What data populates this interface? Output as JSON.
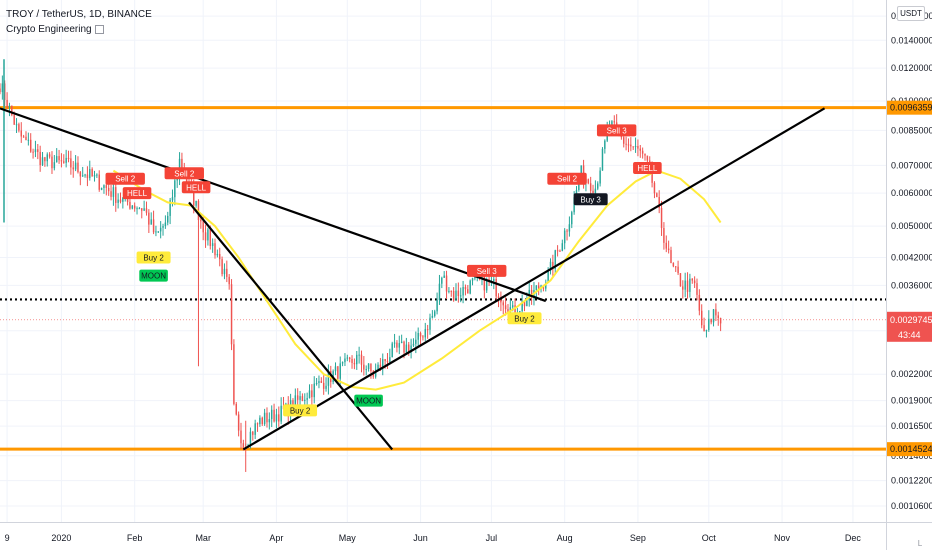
{
  "header": {
    "symbol_line": "TROY / TetherUS, 1D, BINANCE",
    "indicator": "Crypto Engineering"
  },
  "price_scale": {
    "currency": "USDT",
    "mode": "L",
    "ticks": [
      "0.0160000",
      "0.0140000",
      "0.0120000",
      "0.0100000",
      "0.0085000",
      "0.0070000",
      "0.0060000",
      "0.0050000",
      "0.0042000",
      "0.0036000",
      "0.0028000",
      "0.0022000",
      "0.0019000",
      "0.0016500",
      "0.0014000",
      "0.0012200",
      "0.0010600"
    ]
  },
  "time_scale": {
    "ticks": [
      "9",
      "2020",
      "Feb",
      "Mar",
      "Apr",
      "May",
      "Jun",
      "Jul",
      "Aug",
      "Sep",
      "Oct",
      "Nov",
      "Dec"
    ]
  },
  "colors": {
    "up": "#26a69a",
    "down": "#ef5350",
    "level": "#ff9800",
    "ma": "#ffeb3b",
    "trendline": "#000000",
    "sell_label": "#f44336",
    "buy_label": "#ffeb3b",
    "moon_label": "#00c853",
    "buy3_label": "#131722"
  },
  "chart_data": {
    "type": "candlestick",
    "symbol": "TROY / TetherUS",
    "interval": "1D",
    "exchange": "BINANCE",
    "y_scale": "log",
    "ylim": [
      0.00097,
      0.0175
    ],
    "x_range": [
      "2019-12-06",
      "2020-12-15"
    ],
    "last_price": "0.0029745",
    "countdown": "43:44",
    "horizontal_levels": [
      {
        "price": 0.0096359,
        "label": "0.0096359",
        "style": "solid",
        "color": "#ff9800"
      },
      {
        "price": 0.0014524,
        "label": "0.0014524",
        "style": "solid",
        "color": "#ff9800"
      },
      {
        "price": 0.00333,
        "label": "",
        "style": "dotted",
        "color": "#000000"
      }
    ],
    "trendlines": [
      {
        "from": [
          "2019-12-06",
          0.0096
        ],
        "to": [
          "2020-07-24",
          0.0033
        ]
      },
      {
        "from": [
          "2020-02-24",
          0.0057
        ],
        "to": [
          "2020-05-20",
          0.00145
        ]
      },
      {
        "from": [
          "2020-03-18",
          0.00145
        ],
        "to": [
          "2020-11-19",
          0.0096
        ]
      }
    ],
    "signals": [
      {
        "date": "2020-01-28",
        "price": 0.0065,
        "label": "Sell 2",
        "kind": "sell"
      },
      {
        "date": "2020-02-02",
        "price": 0.006,
        "label": "HELL",
        "kind": "sell"
      },
      {
        "date": "2020-02-09",
        "price": 0.0042,
        "label": "Buy 2",
        "kind": "buy"
      },
      {
        "date": "2020-02-09",
        "price": 0.0038,
        "label": "MOON",
        "kind": "moon"
      },
      {
        "date": "2020-02-22",
        "price": 0.0067,
        "label": "Sell 2",
        "kind": "sell"
      },
      {
        "date": "2020-02-27",
        "price": 0.0062,
        "label": "HELL",
        "kind": "sell"
      },
      {
        "date": "2020-04-11",
        "price": 0.0018,
        "label": "Buy 2",
        "kind": "buy"
      },
      {
        "date": "2020-05-10",
        "price": 0.0019,
        "label": "MOON",
        "kind": "moon"
      },
      {
        "date": "2020-06-29",
        "price": 0.0039,
        "label": "Sell 3",
        "kind": "sell"
      },
      {
        "date": "2020-07-15",
        "price": 0.003,
        "label": "Buy 2",
        "kind": "buy"
      },
      {
        "date": "2020-08-02",
        "price": 0.0065,
        "label": "Sell 2",
        "kind": "sell"
      },
      {
        "date": "2020-08-12",
        "price": 0.0058,
        "label": "Buy 3",
        "kind": "buy3"
      },
      {
        "date": "2020-08-23",
        "price": 0.0085,
        "label": "Sell 3",
        "kind": "sell"
      },
      {
        "date": "2020-09-05",
        "price": 0.0069,
        "label": "HELL",
        "kind": "sell"
      }
    ],
    "moving_average": {
      "points": [
        [
          "2020-01-23",
          0.0068
        ],
        [
          "2020-02-05",
          0.0061
        ],
        [
          "2020-02-15",
          0.0057
        ],
        [
          "2020-02-25",
          0.0056
        ],
        [
          "2020-03-06",
          0.005
        ],
        [
          "2020-03-16",
          0.0042
        ],
        [
          "2020-03-28",
          0.0033
        ],
        [
          "2020-04-09",
          0.0026
        ],
        [
          "2020-04-21",
          0.0022
        ],
        [
          "2020-05-03",
          0.00205
        ],
        [
          "2020-05-13",
          0.00202
        ],
        [
          "2020-05-25",
          0.0021
        ],
        [
          "2020-06-10",
          0.0024
        ],
        [
          "2020-06-26",
          0.0028
        ],
        [
          "2020-07-12",
          0.0032
        ],
        [
          "2020-07-26",
          0.0037
        ],
        [
          "2020-08-07",
          0.0046
        ],
        [
          "2020-08-19",
          0.0056
        ],
        [
          "2020-08-31",
          0.0064
        ],
        [
          "2020-09-09",
          0.0068
        ],
        [
          "2020-09-19",
          0.0065
        ],
        [
          "2020-09-29",
          0.0058
        ],
        [
          "2020-10-06",
          0.0051
        ]
      ]
    },
    "ohlc_anchors": [
      [
        "2019-12-06",
        0.011
      ],
      [
        "2019-12-14",
        0.0083
      ],
      [
        "2019-12-24",
        0.0072
      ],
      [
        "2020-01-05",
        0.007
      ],
      [
        "2020-01-15",
        0.0065
      ],
      [
        "2020-01-26",
        0.0058
      ],
      [
        "2020-02-05",
        0.0055
      ],
      [
        "2020-02-10",
        0.0047
      ],
      [
        "2020-02-15",
        0.0052
      ],
      [
        "2020-02-20",
        0.0072
      ],
      [
        "2020-02-26",
        0.0058
      ],
      [
        "2020-03-02",
        0.0048
      ],
      [
        "2020-03-07",
        0.0043
      ],
      [
        "2020-03-12",
        0.0035
      ],
      [
        "2020-03-14",
        0.0018
      ],
      [
        "2020-03-18",
        0.0015
      ],
      [
        "2020-03-25",
        0.0017
      ],
      [
        "2020-04-05",
        0.0018
      ],
      [
        "2020-04-15",
        0.002
      ],
      [
        "2020-04-25",
        0.0022
      ],
      [
        "2020-05-05",
        0.0024
      ],
      [
        "2020-05-12",
        0.0022
      ],
      [
        "2020-05-20",
        0.0025
      ],
      [
        "2020-05-30",
        0.0026
      ],
      [
        "2020-06-07",
        0.0031
      ],
      [
        "2020-06-10",
        0.0038
      ],
      [
        "2020-06-15",
        0.0034
      ],
      [
        "2020-06-25",
        0.0037
      ],
      [
        "2020-07-02",
        0.0036
      ],
      [
        "2020-07-10",
        0.0031
      ],
      [
        "2020-07-18",
        0.0034
      ],
      [
        "2020-07-25",
        0.0038
      ],
      [
        "2020-08-02",
        0.005
      ],
      [
        "2020-08-08",
        0.0067
      ],
      [
        "2020-08-14",
        0.0062
      ],
      [
        "2020-08-20",
        0.0088
      ],
      [
        "2020-08-26",
        0.008
      ],
      [
        "2020-09-02",
        0.0075
      ],
      [
        "2020-09-06",
        0.0068
      ],
      [
        "2020-09-10",
        0.0053
      ],
      [
        "2020-09-15",
        0.004
      ],
      [
        "2020-09-20",
        0.0036
      ],
      [
        "2020-09-25",
        0.0036
      ],
      [
        "2020-09-29",
        0.0027
      ],
      [
        "2020-10-03",
        0.0031
      ],
      [
        "2020-10-06",
        0.003
      ]
    ]
  }
}
